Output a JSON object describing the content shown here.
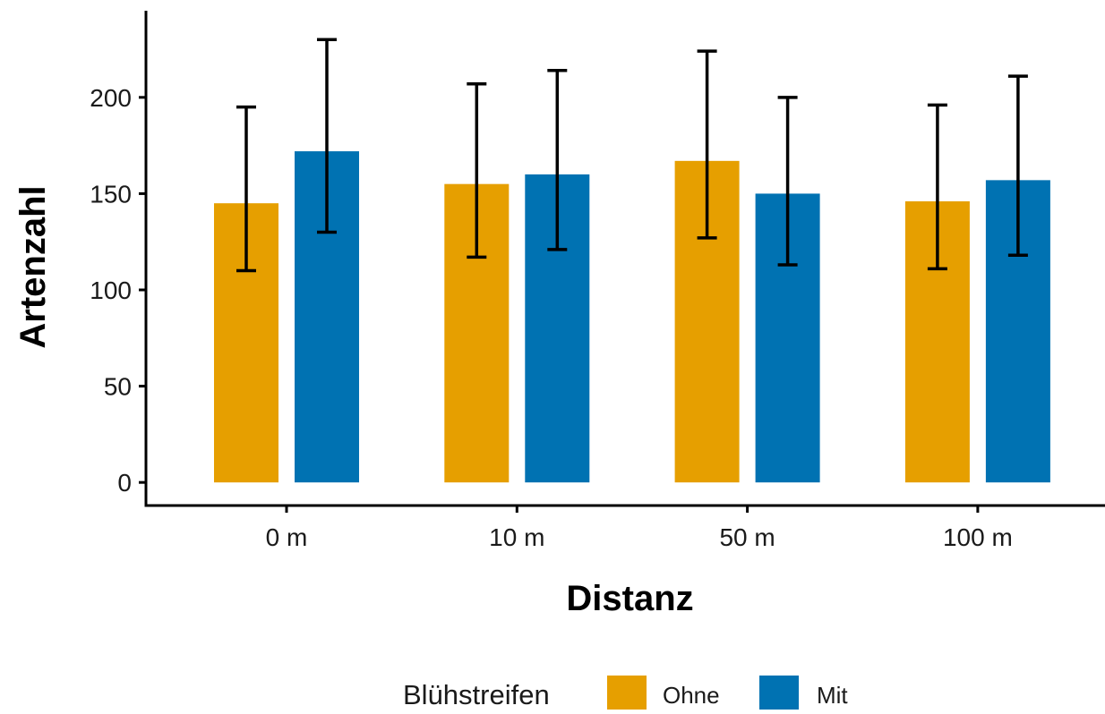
{
  "chart_data": {
    "type": "bar",
    "xlabel": "Distanz",
    "ylabel": "Artenzahl",
    "categories": [
      "0 m",
      "10 m",
      "50 m",
      "100 m"
    ],
    "ylim": [
      -12,
      245
    ],
    "yticks": [
      0,
      50,
      100,
      150,
      200
    ],
    "grid": false,
    "legend_position": "bottom",
    "legend_title": "Blühstreifen",
    "series": [
      {
        "name": "Ohne",
        "color": "#E69F00",
        "values": [
          145,
          155,
          167,
          146
        ],
        "error_low": [
          110,
          117,
          127,
          111
        ],
        "error_high": [
          195,
          207,
          224,
          196
        ]
      },
      {
        "name": "Mit",
        "color": "#0072B2",
        "values": [
          172,
          160,
          150,
          157
        ],
        "error_low": [
          130,
          121,
          113,
          118
        ],
        "error_high": [
          230,
          214,
          200,
          211
        ]
      }
    ]
  }
}
